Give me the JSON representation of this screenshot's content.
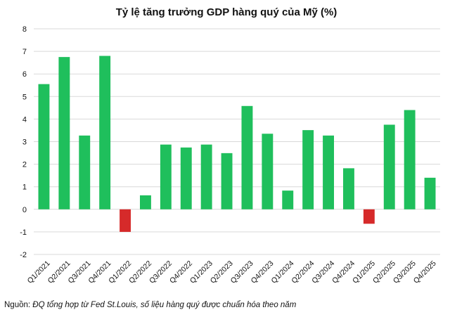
{
  "source": {
    "label": "Nguồn:",
    "text": "ĐQ tổng hợp từ Fed St.Louis, số liệu hàng quý được chuẩn hóa theo năm"
  },
  "colors": {
    "positive": "#1fbf5c",
    "negative": "#d62a2a",
    "grid": "#d9d9d9"
  },
  "chart_data": {
    "type": "bar",
    "title": "Tỷ lệ tăng trưởng GDP hàng quý của Mỹ (%)",
    "xlabel": "",
    "ylabel": "",
    "ylim": [
      -2,
      8
    ],
    "yticks": [
      8,
      7,
      6,
      5,
      4,
      3,
      2,
      1,
      0,
      -1,
      -2
    ],
    "grid": true,
    "categories": [
      "Q1/2021",
      "Q2/2021",
      "Q3/2021",
      "Q4/2021",
      "Q1/2022",
      "Q2/2022",
      "Q3/2022",
      "Q4/2022",
      "Q1/2023",
      "Q2/2023",
      "Q3/2023",
      "Q4/2023",
      "Q1/2024",
      "Q2/2024",
      "Q3/2024",
      "Q4/2024",
      "Q1/2025",
      "Q2/2025",
      "Q3/2025",
      "Q4/2025"
    ],
    "values": [
      5.55,
      6.75,
      3.27,
      6.8,
      -1.0,
      0.62,
      2.87,
      2.74,
      2.87,
      2.49,
      4.58,
      3.35,
      0.83,
      3.51,
      3.27,
      1.82,
      -0.64,
      3.75,
      4.4,
      1.4
    ]
  }
}
